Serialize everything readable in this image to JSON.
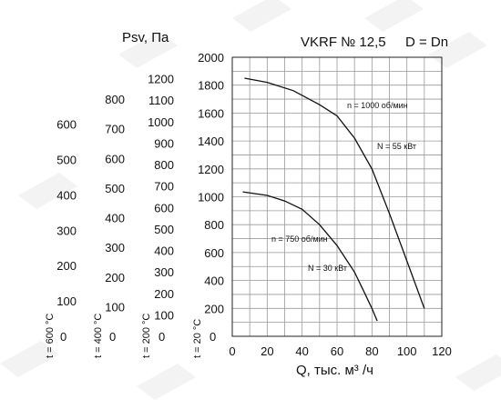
{
  "chart_data": {
    "type": "line",
    "title": "VKRF № 12,5",
    "subtitle": "D = Dn",
    "xlabel": "Q, тыс. м³ /ч",
    "ylabel": "Psv, Па",
    "xlim": [
      0,
      120
    ],
    "ylim": [
      0,
      2000
    ],
    "grid": true,
    "x_ticks": [
      "0",
      "20",
      "40",
      "60",
      "80",
      "100",
      "120"
    ],
    "y_ticks": [
      "200",
      "400",
      "600",
      "800",
      "1000",
      "1200",
      "1400",
      "1600",
      "1800",
      "2000"
    ],
    "extra_axes": [
      {
        "label": "t = 200 °C",
        "zero": "0",
        "ticks": [
          "100",
          "200",
          "300",
          "400",
          "500",
          "600",
          "700",
          "800",
          "900",
          "1000",
          "1100",
          "1200"
        ]
      },
      {
        "label": "t = 400 °C",
        "zero": "0",
        "ticks": [
          "100",
          "200",
          "300",
          "400",
          "500",
          "600",
          "700",
          "800"
        ]
      },
      {
        "label": "t = 600 °C",
        "zero": "0",
        "ticks": [
          "100",
          "200",
          "300",
          "400",
          "500",
          "600"
        ]
      }
    ],
    "base_axis_label": "t = 20 °C",
    "series": [
      {
        "curve_label": "n = 1000 об/мин",
        "power_label": "N = 55 кВт",
        "x": [
          7,
          20,
          35,
          50,
          60,
          70,
          80,
          90,
          100,
          110
        ],
        "y": [
          1850,
          1820,
          1760,
          1660,
          1580,
          1420,
          1200,
          880,
          540,
          200
        ]
      },
      {
        "curve_label": "n = 750 об/мин",
        "power_label": "N = 30 кВт",
        "x": [
          6,
          20,
          30,
          40,
          50,
          60,
          70,
          75,
          80,
          83
        ],
        "y": [
          1035,
          1010,
          970,
          910,
          800,
          650,
          460,
          330,
          200,
          110
        ]
      }
    ]
  }
}
